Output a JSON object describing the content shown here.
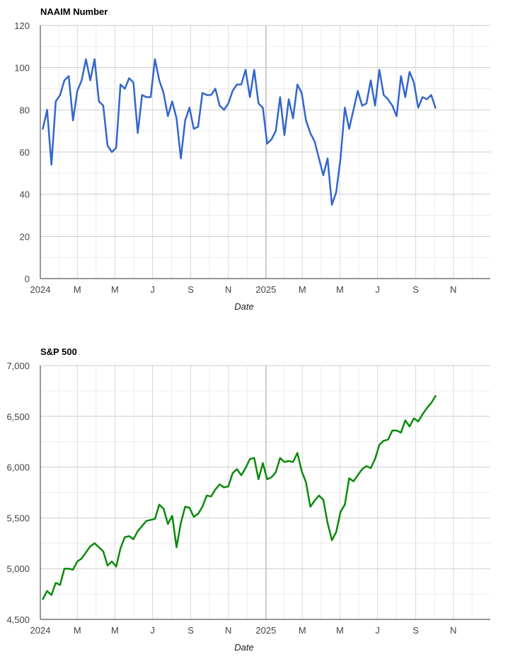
{
  "chart_data": [
    {
      "type": "line",
      "title": "NAAIM Number",
      "xlabel": "Date",
      "ylabel": "",
      "ylim": [
        0,
        120
      ],
      "yticks": [
        0,
        20,
        40,
        60,
        80,
        100,
        120
      ],
      "ytick_labels": [
        "0",
        "20",
        "40",
        "60",
        "80",
        "100",
        "120"
      ],
      "xlim": [
        "2024-01-01",
        "2025-12-31"
      ],
      "xtick_labels": [
        {
          "date": "2024-01-01",
          "label": "2024"
        },
        {
          "date": "2024-03-01",
          "label": "M"
        },
        {
          "date": "2024-05-01",
          "label": "M"
        },
        {
          "date": "2024-07-01",
          "label": "J"
        },
        {
          "date": "2024-09-01",
          "label": "S"
        },
        {
          "date": "2024-11-01",
          "label": "N"
        },
        {
          "date": "2025-01-01",
          "label": "2025"
        },
        {
          "date": "2025-03-01",
          "label": "M"
        },
        {
          "date": "2025-05-01",
          "label": "M"
        },
        {
          "date": "2025-07-01",
          "label": "J"
        },
        {
          "date": "2025-09-01",
          "label": "S"
        },
        {
          "date": "2025-11-01",
          "label": "N"
        }
      ],
      "grid": true,
      "color": "#3366cc",
      "series": [
        {
          "values": [
            71,
            80,
            54,
            84,
            87,
            94,
            96,
            75,
            89,
            94,
            104,
            94,
            104,
            84,
            82,
            63,
            60,
            62,
            92,
            90,
            95,
            93,
            69,
            87,
            86,
            86,
            104,
            94,
            88,
            77,
            84,
            76,
            57,
            75,
            81,
            71,
            72,
            88,
            87,
            87,
            90,
            82,
            80,
            83,
            89,
            92,
            92,
            99,
            86,
            99,
            83,
            81,
            64,
            66,
            70,
            86,
            68,
            85,
            76,
            92,
            88,
            75,
            69,
            65,
            57,
            49,
            57,
            35,
            41,
            57,
            81,
            71,
            80,
            89,
            82,
            83,
            94,
            82,
            99,
            87,
            85,
            82,
            77,
            96,
            86,
            98,
            93,
            81,
            86,
            85,
            87,
            81
          ]
        }
      ]
    },
    {
      "type": "line",
      "title": "S&P 500",
      "xlabel": "Date",
      "ylabel": "",
      "ylim": [
        4500,
        7000
      ],
      "yticks": [
        4500,
        5000,
        5500,
        6000,
        6500,
        7000
      ],
      "ytick_labels": [
        "4,500",
        "5,000",
        "5,500",
        "6,000",
        "6,500",
        "7,000"
      ],
      "xlim": [
        "2024-01-01",
        "2025-12-31"
      ],
      "xtick_labels": [
        {
          "date": "2024-01-01",
          "label": "2024"
        },
        {
          "date": "2024-03-01",
          "label": "M"
        },
        {
          "date": "2024-05-01",
          "label": "M"
        },
        {
          "date": "2024-07-01",
          "label": "J"
        },
        {
          "date": "2024-09-01",
          "label": "S"
        },
        {
          "date": "2024-11-01",
          "label": "N"
        },
        {
          "date": "2025-01-01",
          "label": "2025"
        },
        {
          "date": "2025-03-01",
          "label": "M"
        },
        {
          "date": "2025-05-01",
          "label": "M"
        },
        {
          "date": "2025-07-01",
          "label": "J"
        },
        {
          "date": "2025-09-01",
          "label": "S"
        },
        {
          "date": "2025-11-01",
          "label": "N"
        }
      ],
      "grid": true,
      "color": "#0a8a0a",
      "series": [
        {
          "values": [
            4700,
            4780,
            4740,
            4860,
            4840,
            5000,
            5000,
            4990,
            5070,
            5100,
            5160,
            5220,
            5250,
            5210,
            5170,
            5030,
            5070,
            5020,
            5200,
            5310,
            5320,
            5290,
            5370,
            5420,
            5470,
            5480,
            5490,
            5630,
            5590,
            5440,
            5520,
            5210,
            5450,
            5610,
            5600,
            5510,
            5540,
            5610,
            5720,
            5710,
            5780,
            5830,
            5800,
            5810,
            5940,
            5980,
            5920,
            5990,
            6080,
            6090,
            5880,
            6040,
            5880,
            5900,
            5950,
            6090,
            6050,
            6060,
            6050,
            6140,
            5960,
            5850,
            5610,
            5670,
            5720,
            5680,
            5450,
            5280,
            5360,
            5560,
            5630,
            5890,
            5860,
            5920,
            5980,
            6010,
            5990,
            6080,
            6220,
            6260,
            6270,
            6360,
            6360,
            6340,
            6460,
            6400,
            6480,
            6450,
            6520,
            6580,
            6630,
            6700
          ]
        }
      ]
    }
  ]
}
